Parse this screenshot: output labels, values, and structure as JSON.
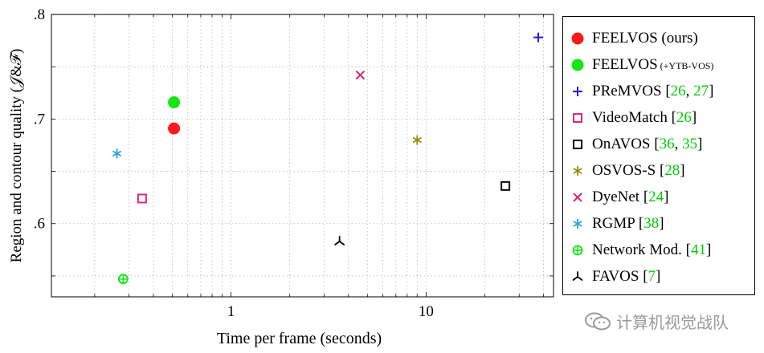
{
  "chart_data": {
    "type": "scatter",
    "title": "",
    "xlabel": "Time per frame (seconds)",
    "ylabel": "Region and contour quality (𝒥&ℱ)",
    "xscale": "log",
    "xlim": [
      0.12,
      45
    ],
    "ylim": [
      0.53,
      0.8
    ],
    "xticks": [
      {
        "value": 1,
        "label": "1"
      },
      {
        "value": 10,
        "label": "10"
      }
    ],
    "yticks": [
      {
        "value": 0.6,
        "label": ".6"
      },
      {
        "value": 0.7,
        "label": ".7"
      },
      {
        "value": 0.8,
        "label": ".8"
      }
    ],
    "grid": true,
    "legend_position": "right",
    "series": [
      {
        "name": "FEELVOS (ours)",
        "marker": "filled-circle",
        "color": "#ff1a1a",
        "x": 0.51,
        "y": 0.691
      },
      {
        "name": "FEELVOS",
        "name_suffix": "(+YTB-VOS)",
        "marker": "filled-circle",
        "color": "#14e614",
        "x": 0.51,
        "y": 0.716
      },
      {
        "name": "PReMVOS",
        "refs": [
          "26",
          "27"
        ],
        "marker": "plus",
        "color": "#1f1fd6",
        "x": 37.6,
        "y": 0.778
      },
      {
        "name": "VideoMatch",
        "refs": [
          "26"
        ],
        "marker": "square",
        "color": "#d6287f",
        "x": 0.35,
        "y": 0.624
      },
      {
        "name": "OnAVOS",
        "refs": [
          "36",
          "35"
        ],
        "marker": "square",
        "color": "#000000",
        "x": 25.5,
        "y": 0.636
      },
      {
        "name": "OSVOS-S",
        "refs": [
          "28"
        ],
        "marker": "asterisk",
        "color": "#9c8a0e",
        "x": 9.0,
        "y": 0.68
      },
      {
        "name": "DyeNet",
        "refs": [
          "24"
        ],
        "marker": "cross",
        "color": "#d6287f",
        "x": 4.6,
        "y": 0.742
      },
      {
        "name": "RGMP",
        "refs": [
          "38"
        ],
        "marker": "asterisk",
        "color": "#27a6d9",
        "x": 0.26,
        "y": 0.667
      },
      {
        "name": "Network Mod.",
        "refs": [
          "41"
        ],
        "marker": "oplus",
        "color": "#14e614",
        "x": 0.28,
        "y": 0.547
      },
      {
        "name": "FAVOS",
        "refs": [
          "7"
        ],
        "marker": "tri",
        "color": "#000000",
        "x": 3.6,
        "y": 0.583
      }
    ]
  },
  "watermark": {
    "text": "计算机视觉战队",
    "icon": "wechat-icon"
  }
}
